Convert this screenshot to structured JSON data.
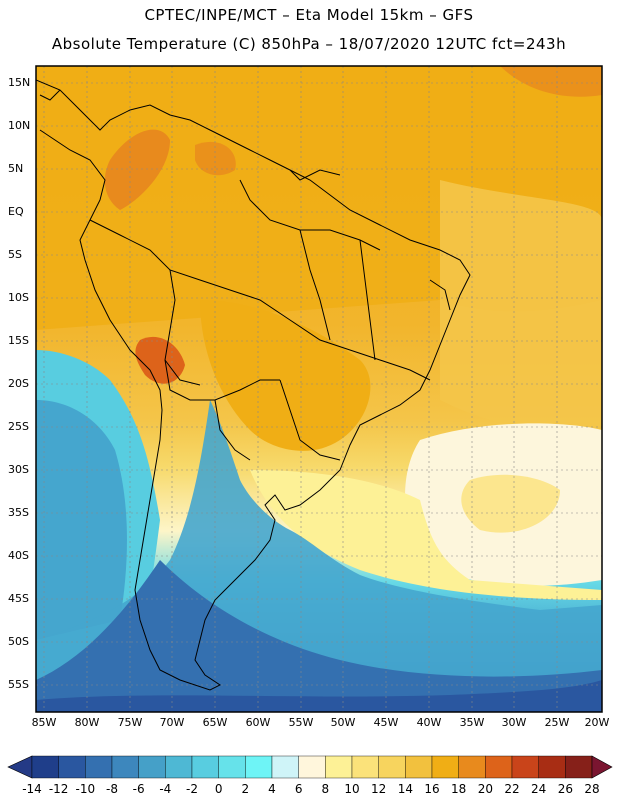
{
  "header": {
    "line1": "CPTEC/INPE/MCT –  Eta Model 15km – GFS",
    "line2": "Absolute Temperature (C) 850hPa – 18/07/2020 12UTC fct=243h"
  },
  "map": {
    "lat_labels": [
      "15N",
      "10N",
      "5N",
      "EQ",
      "5S",
      "10S",
      "15S",
      "20S",
      "25S",
      "30S",
      "35S",
      "40S",
      "45S",
      "50S",
      "55S"
    ],
    "lon_labels": [
      "85W",
      "80W",
      "75W",
      "70W",
      "65W",
      "60W",
      "55W",
      "50W",
      "45W",
      "40W",
      "35W",
      "30W",
      "25W",
      "20W"
    ]
  },
  "colorbar": {
    "labels": [
      "-14",
      "-12",
      "-10",
      "-8",
      "-6",
      "-4",
      "-2",
      "0",
      "2",
      "4",
      "6",
      "8",
      "10",
      "12",
      "14",
      "16",
      "18",
      "20",
      "22",
      "24",
      "26",
      "28"
    ],
    "colors": [
      "#1f3e8a",
      "#2a57a0",
      "#3470b0",
      "#3d87bd",
      "#45a0c8",
      "#4eb8d4",
      "#58cde0",
      "#66e2ea",
      "#6ef4f6",
      "#cff4f8",
      "#fff6dc",
      "#fdf196",
      "#fbe27a",
      "#f7d45e",
      "#f2c13e",
      "#f0ae15",
      "#e88a1d",
      "#dd631a",
      "#c9441a",
      "#a82d14",
      "#862019"
    ],
    "left_cap_color": "#243a86",
    "right_cap_color": "#7a1530"
  }
}
